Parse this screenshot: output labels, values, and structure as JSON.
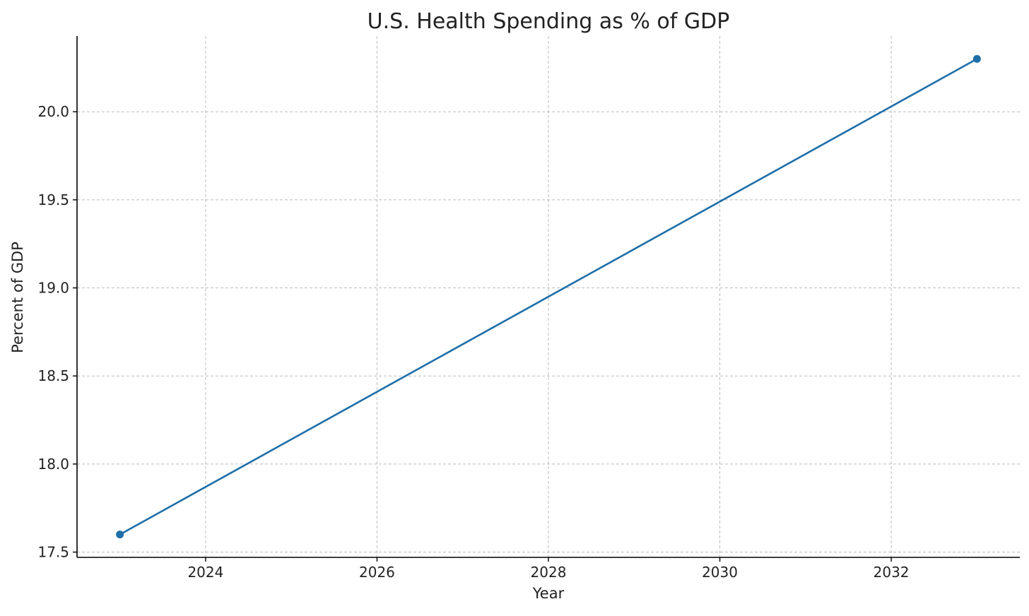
{
  "chart_data": {
    "type": "line",
    "title": "U.S. Health Spending as % of GDP",
    "xlabel": "Year",
    "ylabel": "Percent of GDP",
    "xlim": [
      2022.5,
      2033.5
    ],
    "ylim": [
      17.47,
      20.43
    ],
    "x_ticks": [
      2024,
      2026,
      2028,
      2030,
      2032
    ],
    "x_tick_labels": [
      "2024",
      "2026",
      "2028",
      "2030",
      "2032"
    ],
    "y_ticks": [
      17.5,
      18.0,
      18.5,
      19.0,
      19.5,
      20.0
    ],
    "y_tick_labels": [
      "17.5",
      "18.0",
      "18.5",
      "19.0",
      "19.5",
      "20.0"
    ],
    "grid": true,
    "series": [
      {
        "color": "#1f6fa8",
        "x": [
          2023,
          2033
        ],
        "y": [
          17.6,
          20.3
        ]
      }
    ]
  }
}
